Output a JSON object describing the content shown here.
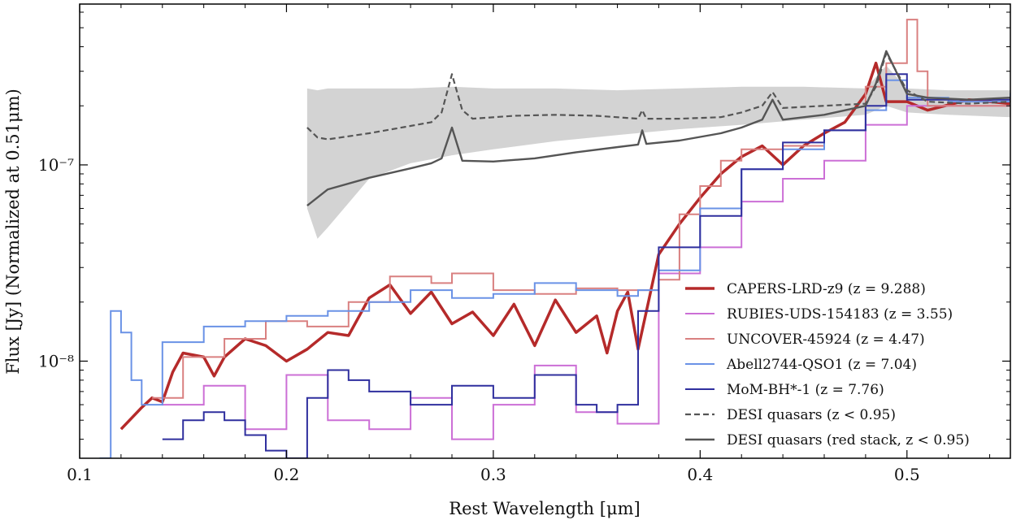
{
  "chart_data": {
    "type": "line",
    "title": "",
    "xlabel": "Rest Wavelength [μm]",
    "ylabel": "Flux [Jy] (Normalized at 0.51μm)",
    "xlim": [
      0.1,
      0.55
    ],
    "ylim": [
      3.2e-09,
      6.6e-07
    ],
    "yscale": "log",
    "xticks": [
      {
        "value": 0.1,
        "label": "0.1"
      },
      {
        "value": 0.2,
        "label": "0.2"
      },
      {
        "value": 0.3,
        "label": "0.3"
      },
      {
        "value": 0.4,
        "label": "0.4"
      },
      {
        "value": 0.5,
        "label": "0.5"
      }
    ],
    "yticks": [
      {
        "value": 1e-08,
        "label": "10⁻⁸"
      },
      {
        "value": 1e-07,
        "label": "10⁻⁷"
      }
    ],
    "legend_position": "bottom-right",
    "series": [
      {
        "name": "CAPERS-LRD-z9 (z = 9.288)",
        "color": "#b52a2a",
        "style": "solid-thick",
        "x": [
          0.12,
          0.13,
          0.135,
          0.14,
          0.145,
          0.15,
          0.16,
          0.165,
          0.17,
          0.18,
          0.19,
          0.2,
          0.21,
          0.22,
          0.23,
          0.24,
          0.25,
          0.26,
          0.27,
          0.28,
          0.29,
          0.3,
          0.31,
          0.32,
          0.33,
          0.34,
          0.35,
          0.355,
          0.36,
          0.365,
          0.37,
          0.375,
          0.38,
          0.39,
          0.4,
          0.41,
          0.42,
          0.43,
          0.44,
          0.45,
          0.46,
          0.47,
          0.48,
          0.485,
          0.49,
          0.5,
          0.51,
          0.53,
          0.55
        ],
        "y": [
          4.5e-09,
          5.8e-09,
          6.5e-09,
          6.2e-09,
          8.8e-09,
          1.1e-08,
          1.05e-08,
          8.4e-09,
          1.05e-08,
          1.3e-08,
          1.2e-08,
          1e-08,
          1.15e-08,
          1.4e-08,
          1.35e-08,
          2.1e-08,
          2.45e-08,
          1.75e-08,
          2.25e-08,
          1.55e-08,
          1.78e-08,
          1.35e-08,
          1.95e-08,
          1.2e-08,
          2.05e-08,
          1.4e-08,
          1.7e-08,
          1.1e-08,
          1.8e-08,
          2.25e-08,
          1.15e-08,
          2e-08,
          3.5e-08,
          5e-08,
          6.8e-08,
          9e-08,
          1.1e-07,
          1.25e-07,
          1e-07,
          1.25e-07,
          1.45e-07,
          1.65e-07,
          2.3e-07,
          3.3e-07,
          2.1e-07,
          2.1e-07,
          1.9e-07,
          2.15e-07,
          2.05e-07
        ]
      },
      {
        "name": "RUBIES-UDS-154183 (z = 3.55)",
        "color": "#cc6fd6",
        "style": "step",
        "x": [
          0.14,
          0.16,
          0.18,
          0.2,
          0.22,
          0.24,
          0.26,
          0.28,
          0.3,
          0.32,
          0.34,
          0.36,
          0.38,
          0.4,
          0.42,
          0.44,
          0.46,
          0.48,
          0.5,
          0.53,
          0.55
        ],
        "y": [
          6e-09,
          7.5e-09,
          4.5e-09,
          8.5e-09,
          5e-09,
          4.5e-09,
          6.5e-09,
          4e-09,
          6e-09,
          9.5e-09,
          5.5e-09,
          4.8e-09,
          2.8e-08,
          3.8e-08,
          6.5e-08,
          8.5e-08,
          1.05e-07,
          1.6e-07,
          2e-07,
          2e-07,
          2.05e-07
        ]
      },
      {
        "name": "UNCOVER-45924 (z = 4.47)",
        "color": "#d98080",
        "style": "step",
        "x": [
          0.135,
          0.15,
          0.17,
          0.19,
          0.21,
          0.23,
          0.25,
          0.27,
          0.28,
          0.3,
          0.32,
          0.34,
          0.36,
          0.37,
          0.38,
          0.39,
          0.4,
          0.41,
          0.42,
          0.44,
          0.46,
          0.48,
          0.49,
          0.5,
          0.505,
          0.51,
          0.53,
          0.55
        ],
        "y": [
          6.5e-09,
          1.05e-08,
          1.3e-08,
          1.6e-08,
          1.5e-08,
          2e-08,
          2.7e-08,
          2.5e-08,
          2.8e-08,
          2.3e-08,
          2.2e-08,
          2.35e-08,
          2.3e-08,
          2.3e-08,
          2.6e-08,
          5.6e-08,
          7.8e-08,
          1.05e-07,
          1.2e-07,
          1.25e-07,
          1.5e-07,
          2.5e-07,
          3.3e-07,
          5.5e-07,
          3e-07,
          2e-07,
          2e-07,
          2.05e-07
        ]
      },
      {
        "name": "Abell2744-QSO1 (z = 7.04)",
        "color": "#6a92e6",
        "style": "step",
        "x": [
          0.105,
          0.11,
          0.115,
          0.12,
          0.125,
          0.13,
          0.14,
          0.16,
          0.18,
          0.2,
          0.22,
          0.24,
          0.26,
          0.28,
          0.3,
          0.32,
          0.34,
          0.36,
          0.37,
          0.38,
          0.4,
          0.42,
          0.44,
          0.46,
          0.48,
          0.49,
          0.5,
          0.52,
          0.55
        ],
        "y": [
          3e-09,
          3.2e-09,
          1.8e-08,
          1.4e-08,
          8e-09,
          6e-09,
          1.25e-08,
          1.5e-08,
          1.6e-08,
          1.7e-08,
          1.8e-08,
          2e-08,
          2.3e-08,
          2.1e-08,
          2.2e-08,
          2.5e-08,
          2.3e-08,
          2.15e-08,
          2.3e-08,
          2.9e-08,
          6e-08,
          9.5e-08,
          1.2e-07,
          1.5e-07,
          1.9e-07,
          2.7e-07,
          2.2e-07,
          2.1e-07,
          2.3e-07
        ]
      },
      {
        "name": "MoM-BH*-1 (z = 7.76)",
        "color": "#2f2f9e",
        "style": "step",
        "x": [
          0.14,
          0.15,
          0.16,
          0.17,
          0.18,
          0.19,
          0.2,
          0.21,
          0.22,
          0.23,
          0.24,
          0.26,
          0.28,
          0.3,
          0.32,
          0.34,
          0.35,
          0.36,
          0.37,
          0.38,
          0.4,
          0.42,
          0.44,
          0.46,
          0.48,
          0.49,
          0.5,
          0.52,
          0.55
        ],
        "y": [
          4e-09,
          5e-09,
          5.5e-09,
          5e-09,
          4.2e-09,
          3.5e-09,
          3.2e-09,
          6.5e-09,
          9e-09,
          8e-09,
          7e-09,
          6e-09,
          7.5e-09,
          6.5e-09,
          8.5e-09,
          6e-09,
          5.5e-09,
          6e-09,
          1.8e-08,
          3.8e-08,
          5.5e-08,
          9.5e-08,
          1.3e-07,
          1.5e-07,
          2e-07,
          2.9e-07,
          2.15e-07,
          2.15e-07,
          2.2e-07
        ]
      },
      {
        "name": "DESI quasars (z < 0.95)",
        "color": "#555555",
        "style": "dashed",
        "x": [
          0.21,
          0.215,
          0.22,
          0.24,
          0.26,
          0.27,
          0.275,
          0.28,
          0.285,
          0.29,
          0.31,
          0.33,
          0.35,
          0.37,
          0.372,
          0.374,
          0.39,
          0.41,
          0.42,
          0.43,
          0.435,
          0.44,
          0.46,
          0.48,
          0.485,
          0.49,
          0.5,
          0.51,
          0.53,
          0.55
        ],
        "y": [
          1.55e-07,
          1.38e-07,
          1.35e-07,
          1.45e-07,
          1.58e-07,
          1.65e-07,
          1.85e-07,
          2.9e-07,
          1.9e-07,
          1.72e-07,
          1.78e-07,
          1.8e-07,
          1.78e-07,
          1.72e-07,
          1.9e-07,
          1.72e-07,
          1.72e-07,
          1.75e-07,
          1.85e-07,
          2e-07,
          2.35e-07,
          1.95e-07,
          2e-07,
          2.05e-07,
          2.5e-07,
          3.7e-07,
          2.4e-07,
          2.1e-07,
          2.05e-07,
          2.1e-07
        ]
      },
      {
        "name": "DESI quasars (red stack, z < 0.95)",
        "color": "#555555",
        "style": "solid",
        "x": [
          0.21,
          0.22,
          0.24,
          0.26,
          0.27,
          0.275,
          0.28,
          0.285,
          0.3,
          0.32,
          0.34,
          0.37,
          0.372,
          0.374,
          0.39,
          0.41,
          0.42,
          0.43,
          0.435,
          0.44,
          0.46,
          0.48,
          0.485,
          0.49,
          0.5,
          0.51,
          0.53,
          0.55
        ],
        "y": [
          6.2e-08,
          7.5e-08,
          8.6e-08,
          9.6e-08,
          1.02e-07,
          1.08e-07,
          1.55e-07,
          1.05e-07,
          1.04e-07,
          1.08e-07,
          1.16e-07,
          1.27e-07,
          1.5e-07,
          1.28e-07,
          1.33e-07,
          1.45e-07,
          1.55e-07,
          1.7e-07,
          2.15e-07,
          1.7e-07,
          1.8e-07,
          2e-07,
          2.6e-07,
          3.8e-07,
          2.3e-07,
          2.2e-07,
          2.15e-07,
          2.2e-07
        ]
      }
    ],
    "band": {
      "name": "DESI quasars spread",
      "color": "#d3d3d3",
      "x": [
        0.21,
        0.215,
        0.22,
        0.24,
        0.26,
        0.28,
        0.3,
        0.33,
        0.36,
        0.39,
        0.42,
        0.45,
        0.48,
        0.49,
        0.5,
        0.52,
        0.55
      ],
      "upper": [
        2.45e-07,
        2.4e-07,
        2.45e-07,
        2.45e-07,
        2.45e-07,
        2.5e-07,
        2.45e-07,
        2.45e-07,
        2.4e-07,
        2.45e-07,
        2.5e-07,
        2.5e-07,
        2.45e-07,
        3.2e-07,
        2.45e-07,
        2.4e-07,
        2.4e-07
      ],
      "lower": [
        6e-08,
        4.2e-08,
        4.8e-08,
        8.5e-08,
        1.02e-07,
        1.12e-07,
        1.2e-07,
        1.32e-07,
        1.42e-07,
        1.52e-07,
        1.6e-07,
        1.7e-07,
        1.8e-07,
        2e-07,
        1.85e-07,
        1.8e-07,
        1.75e-07
      ]
    }
  }
}
